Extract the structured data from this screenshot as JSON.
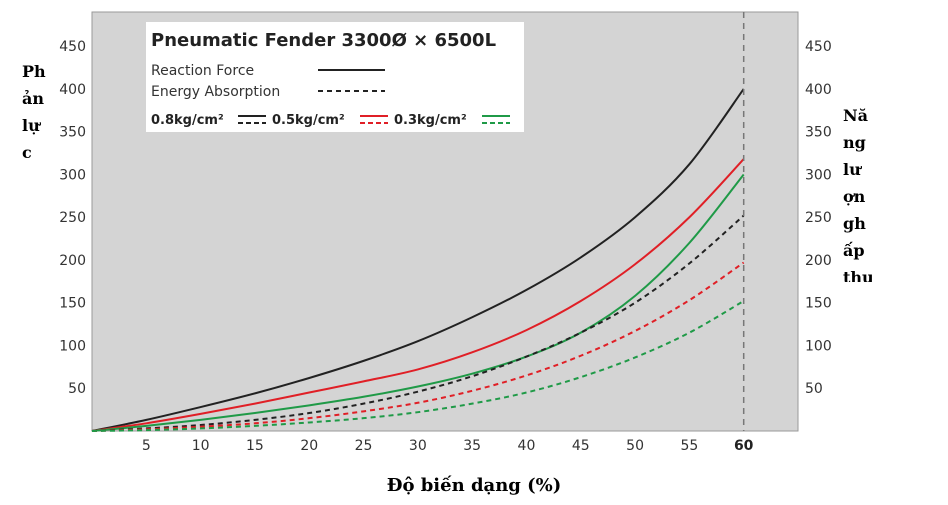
{
  "chart_data": {
    "type": "line",
    "title": "Pneumatic Fender 3300Ø × 6500L",
    "xlabel": "Độ biến dạng (%)",
    "ylabel_left": [
      "Ph",
      "ản",
      "lự",
      "c"
    ],
    "ylabel_right": [
      "Nă",
      "ng",
      "lư",
      "ợn",
      "gh",
      "ấp",
      "thụ"
    ],
    "xlim": [
      0,
      65
    ],
    "ylim": [
      0,
      490
    ],
    "x_ticks": [
      5,
      10,
      15,
      20,
      25,
      30,
      35,
      40,
      45,
      50,
      55,
      60
    ],
    "y_ticks": [
      50,
      100,
      150,
      200,
      250,
      300,
      350,
      400,
      450
    ],
    "rated_deflection": 60,
    "grid": false,
    "legend": {
      "reaction_label": "Reaction Force",
      "energy_label": "Energy Absorption",
      "pressures": [
        "0.8kg/cm²",
        "0.5kg/cm²",
        "0.3kg/cm²"
      ]
    },
    "x": [
      0,
      5,
      10,
      15,
      20,
      25,
      30,
      35,
      40,
      45,
      50,
      55,
      60
    ],
    "series": [
      {
        "name": "Reaction Force 0.8kg/cm²",
        "color": "#222222",
        "dash": false,
        "values": [
          0,
          13,
          28,
          44,
          62,
          82,
          105,
          133,
          165,
          203,
          250,
          312,
          400
        ]
      },
      {
        "name": "Reaction Force 0.5kg/cm²",
        "color": "#e01f26",
        "dash": false,
        "values": [
          0,
          9,
          20,
          32,
          45,
          58,
          72,
          92,
          118,
          152,
          195,
          250,
          318
        ]
      },
      {
        "name": "Reaction Force 0.3kg/cm²",
        "color": "#1f9a47",
        "dash": false,
        "values": [
          0,
          6,
          13,
          21,
          30,
          40,
          52,
          67,
          87,
          115,
          158,
          220,
          300
        ]
      },
      {
        "name": "Energy Absorption 0.8kg/cm²",
        "color": "#222222",
        "dash": true,
        "values": [
          0,
          3,
          7,
          13,
          21,
          32,
          46,
          64,
          87,
          115,
          150,
          196,
          252
        ]
      },
      {
        "name": "Energy Absorption 0.5kg/cm²",
        "color": "#e01f26",
        "dash": true,
        "values": [
          0,
          2,
          5,
          9,
          15,
          23,
          33,
          47,
          65,
          88,
          117,
          153,
          197
        ]
      },
      {
        "name": "Energy Absorption 0.3kg/cm²",
        "color": "#1f9a47",
        "dash": true,
        "values": [
          0,
          1,
          3,
          6,
          10,
          15,
          22,
          32,
          45,
          63,
          86,
          115,
          152
        ]
      }
    ]
  }
}
